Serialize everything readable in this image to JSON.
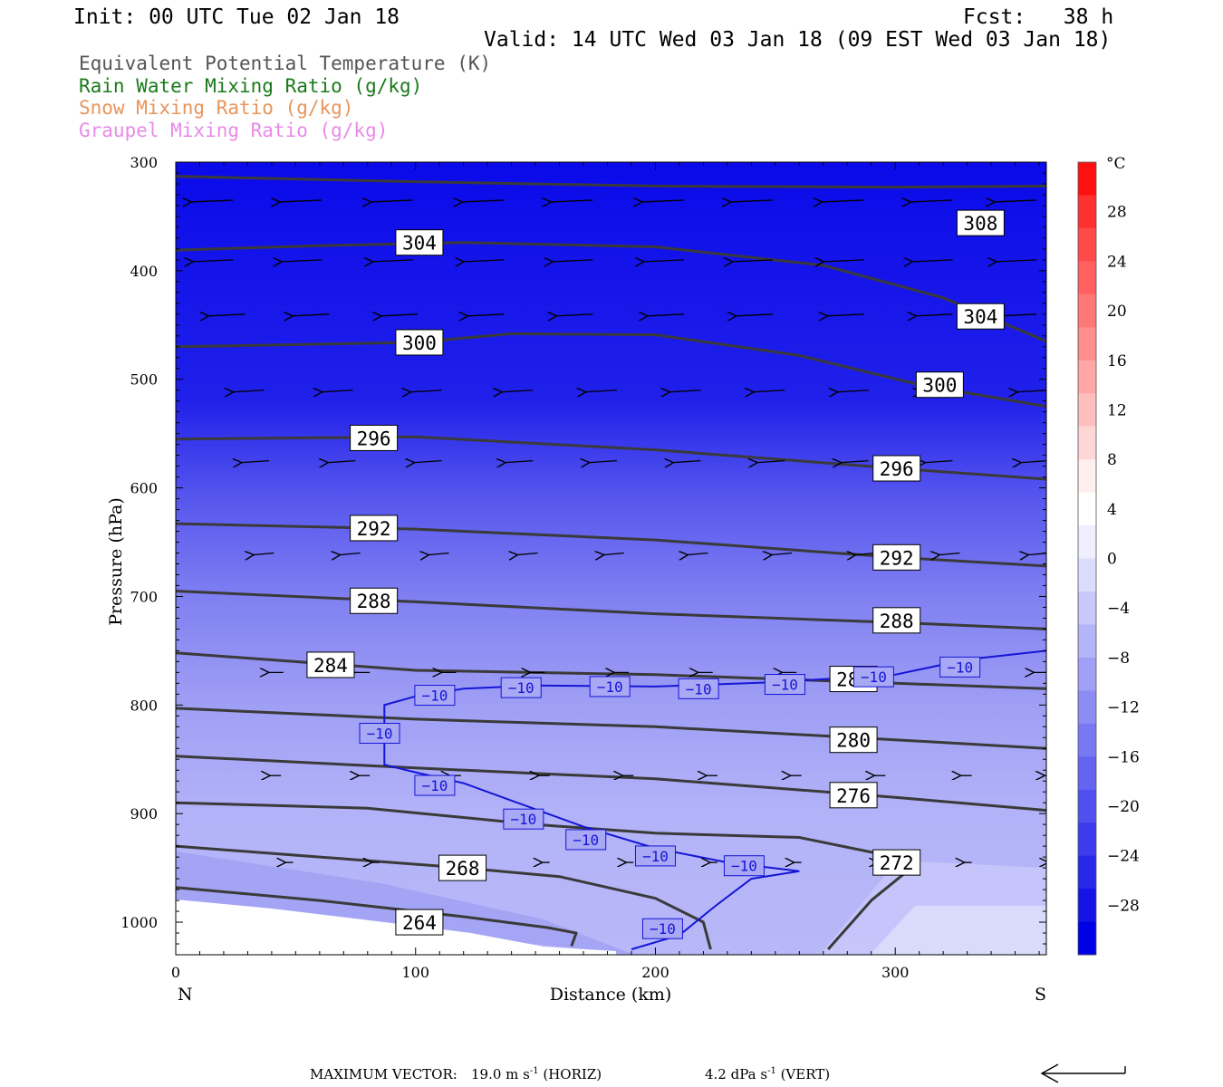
{
  "header": {
    "init": "Init: 00 UTC Tue 02 Jan 18",
    "fcst": "Fcst:   38 h",
    "valid": "Valid: 14 UTC Wed 03 Jan 18 (09 EST Wed 03 Jan 18)"
  },
  "legend": [
    {
      "label": "Equivalent Potential Temperature (K)",
      "color": "#555555"
    },
    {
      "label": "Rain Water Mixing Ratio (g/kg)",
      "color": "#1a7a1a"
    },
    {
      "label": "Snow Mixing Ratio (g/kg)",
      "color": "#e8955a"
    },
    {
      "label": "Graupel Mixing Ratio (g/kg)",
      "color": "#e88ae8"
    }
  ],
  "footer": {
    "max_vector_label": "MAXIMUM VECTOR:",
    "horiz": "19.0 m s",
    "horiz_tag": " (HORIZ)",
    "vert": "4.2 dPa s",
    "vert_tag": " (VERT)",
    "exponent": "-1"
  },
  "chart_data": {
    "type": "contour",
    "xlabel": "Distance (km)",
    "ylabel": "Pressure (hPa)",
    "xlim": [
      0,
      363
    ],
    "ylim": [
      300,
      1030
    ],
    "x_ticks": [
      0,
      100,
      200,
      300
    ],
    "y_ticks": [
      300,
      400,
      500,
      600,
      700,
      800,
      900,
      1000
    ],
    "x_end_labels": {
      "left": "N",
      "right": "S"
    },
    "colorbar": {
      "unit": "°C",
      "tick_labels": [
        "28",
        "24",
        "20",
        "16",
        "12",
        "8",
        "4",
        "0",
        "−4",
        "−8",
        "−12",
        "−16",
        "−20",
        "−24",
        "−28"
      ],
      "tick_values": [
        28,
        24,
        20,
        16,
        12,
        8,
        4,
        0,
        -4,
        -8,
        -12,
        -16,
        -20,
        -24,
        -28
      ],
      "colors": [
        "#ff1010",
        "#ff3030",
        "#ff4a4a",
        "#ff6060",
        "#ff7878",
        "#ff8e8e",
        "#ffa6a6",
        "#ffbebe",
        "#ffd6d6",
        "#ffeeee",
        "#ffffff",
        "#eeeeff",
        "#dcdcfd",
        "#c8c8fb",
        "#b4b4f8",
        "#a0a0f6",
        "#8c8cf4",
        "#7878f2",
        "#6464f0",
        "#5050ee",
        "#3c3cec",
        "#2828ea",
        "#1414e8",
        "#0000e6"
      ],
      "range": [
        -32,
        32
      ]
    },
    "theta_e_contours": [
      {
        "value": 308,
        "points": [
          [
            0,
            313
          ],
          [
            100,
            318
          ],
          [
            200,
            322
          ],
          [
            300,
            323
          ],
          [
            363,
            322
          ]
        ]
      },
      {
        "value": 304,
        "points": [
          [
            0,
            381
          ],
          [
            60,
            377
          ],
          [
            120,
            374
          ],
          [
            200,
            378
          ],
          [
            270,
            395
          ],
          [
            320,
            425
          ],
          [
            363,
            465
          ]
        ]
      },
      {
        "value": 300,
        "points": [
          [
            0,
            470
          ],
          [
            100,
            466
          ],
          [
            140,
            458
          ],
          [
            200,
            459
          ],
          [
            260,
            478
          ],
          [
            310,
            505
          ],
          [
            363,
            525
          ]
        ]
      },
      {
        "value": 296,
        "points": [
          [
            0,
            555
          ],
          [
            100,
            553
          ],
          [
            200,
            565
          ],
          [
            300,
            582
          ],
          [
            363,
            592
          ]
        ]
      },
      {
        "value": 292,
        "points": [
          [
            0,
            633
          ],
          [
            100,
            638
          ],
          [
            200,
            648
          ],
          [
            300,
            664
          ],
          [
            363,
            672
          ]
        ]
      },
      {
        "value": 288,
        "points": [
          [
            0,
            695
          ],
          [
            100,
            705
          ],
          [
            200,
            716
          ],
          [
            300,
            724
          ],
          [
            363,
            730
          ]
        ]
      },
      {
        "value": 284,
        "points": [
          [
            0,
            752
          ],
          [
            100,
            768
          ],
          [
            200,
            772
          ],
          [
            300,
            780
          ],
          [
            363,
            785
          ]
        ]
      },
      {
        "value": 280,
        "points": [
          [
            0,
            803
          ],
          [
            100,
            813
          ],
          [
            200,
            820
          ],
          [
            300,
            832
          ],
          [
            363,
            840
          ]
        ]
      },
      {
        "value": 276,
        "points": [
          [
            0,
            847
          ],
          [
            100,
            858
          ],
          [
            200,
            868
          ],
          [
            300,
            885
          ],
          [
            363,
            897
          ]
        ]
      },
      {
        "value": 272,
        "points": [
          [
            0,
            890
          ],
          [
            80,
            895
          ],
          [
            150,
            910
          ],
          [
            200,
            918
          ],
          [
            260,
            922
          ],
          [
            300,
            940
          ],
          [
            305,
            953
          ],
          [
            290,
            980
          ],
          [
            272,
            1025
          ]
        ]
      },
      {
        "value": 268,
        "points": [
          [
            0,
            930
          ],
          [
            60,
            940
          ],
          [
            120,
            950
          ],
          [
            160,
            958
          ],
          [
            200,
            978
          ],
          [
            220,
            1000
          ],
          [
            223,
            1025
          ]
        ]
      },
      {
        "value": 264,
        "points": [
          [
            0,
            968
          ],
          [
            60,
            980
          ],
          [
            120,
            995
          ],
          [
            155,
            1005
          ],
          [
            167,
            1010
          ],
          [
            165,
            1022
          ]
        ]
      }
    ],
    "theta_e_labels": [
      {
        "value": 308,
        "x": 325,
        "p": 356
      },
      {
        "value": 304,
        "x": 91,
        "p": 374
      },
      {
        "value": 304,
        "x": 325,
        "p": 442
      },
      {
        "value": 300,
        "x": 91,
        "p": 466
      },
      {
        "value": 300,
        "x": 308,
        "p": 505
      },
      {
        "value": 296,
        "x": 72,
        "p": 554
      },
      {
        "value": 296,
        "x": 290,
        "p": 582
      },
      {
        "value": 292,
        "x": 72,
        "p": 637
      },
      {
        "value": 292,
        "x": 290,
        "p": 664
      },
      {
        "value": 288,
        "x": 72,
        "p": 704
      },
      {
        "value": 288,
        "x": 290,
        "p": 722
      },
      {
        "value": 284,
        "x": 54,
        "p": 763
      },
      {
        "value": 284,
        "x": 272,
        "p": 776
      },
      {
        "value": 280,
        "x": 272,
        "p": 832
      },
      {
        "value": 276,
        "x": 272,
        "p": 883
      },
      {
        "value": 272,
        "x": 290,
        "p": 945
      },
      {
        "value": 268,
        "x": 109,
        "p": 950
      },
      {
        "value": 264,
        "x": 91,
        "p": 1000
      }
    ],
    "temperature_contour": {
      "value": -10,
      "label": "−10",
      "points": [
        [
          363,
          750
        ],
        [
          330,
          758
        ],
        [
          300,
          772
        ],
        [
          250,
          779
        ],
        [
          200,
          783
        ],
        [
          150,
          782
        ],
        [
          120,
          785
        ],
        [
          100,
          792
        ],
        [
          87,
          800
        ],
        [
          87,
          855
        ],
        [
          100,
          862
        ],
        [
          120,
          872
        ],
        [
          140,
          888
        ],
        [
          170,
          912
        ],
        [
          200,
          932
        ],
        [
          230,
          945
        ],
        [
          260,
          953
        ],
        [
          240,
          960
        ],
        [
          225,
          985
        ],
        [
          210,
          1012
        ],
        [
          190,
          1025
        ]
      ],
      "labels": [
        [
          108,
          791
        ],
        [
          144,
          784
        ],
        [
          181,
          783
        ],
        [
          218,
          785
        ],
        [
          254,
          781
        ],
        [
          291,
          774
        ],
        [
          327,
          765
        ],
        [
          85,
          826
        ],
        [
          108,
          874
        ],
        [
          145,
          905
        ],
        [
          171,
          924
        ],
        [
          200,
          939
        ],
        [
          237,
          948
        ],
        [
          203,
          1006
        ]
      ]
    },
    "wind_rows": [
      {
        "p": 335,
        "xs": [
          5,
          42,
          80,
          118,
          155,
          193,
          230,
          268,
          305,
          340
        ],
        "len": 46
      },
      {
        "p": 390,
        "xs": [
          5,
          42,
          80,
          118,
          155,
          193,
          230,
          268,
          305,
          340
        ],
        "len": 44
      },
      {
        "p": 440,
        "xs": [
          10,
          45,
          82,
          118,
          155,
          193,
          230,
          268,
          305,
          340
        ],
        "len": 40
      },
      {
        "p": 510,
        "xs": [
          18,
          55,
          92,
          130,
          165,
          200,
          235,
          270,
          305,
          345
        ],
        "len": 34
      },
      {
        "p": 575,
        "xs": [
          20,
          56,
          92,
          130,
          165,
          200,
          235,
          270,
          305,
          345
        ],
        "len": 30
      },
      {
        "p": 660,
        "xs": [
          22,
          58,
          95,
          132,
          168,
          203,
          238,
          273,
          308,
          345
        ],
        "len": 22
      },
      {
        "p": 770,
        "xs": [
          26,
          62,
          98,
          135,
          170,
          205,
          240,
          275,
          310,
          345
        ],
        "len": 16
      },
      {
        "p": 865,
        "xs": [
          25,
          62,
          100,
          137,
          172,
          207,
          242,
          277,
          313,
          348
        ],
        "len": 12
      },
      {
        "p": 945,
        "xs": [
          30,
          66,
          100,
          137,
          172,
          207,
          242,
          277,
          313,
          348
        ],
        "len": 8
      }
    ]
  }
}
